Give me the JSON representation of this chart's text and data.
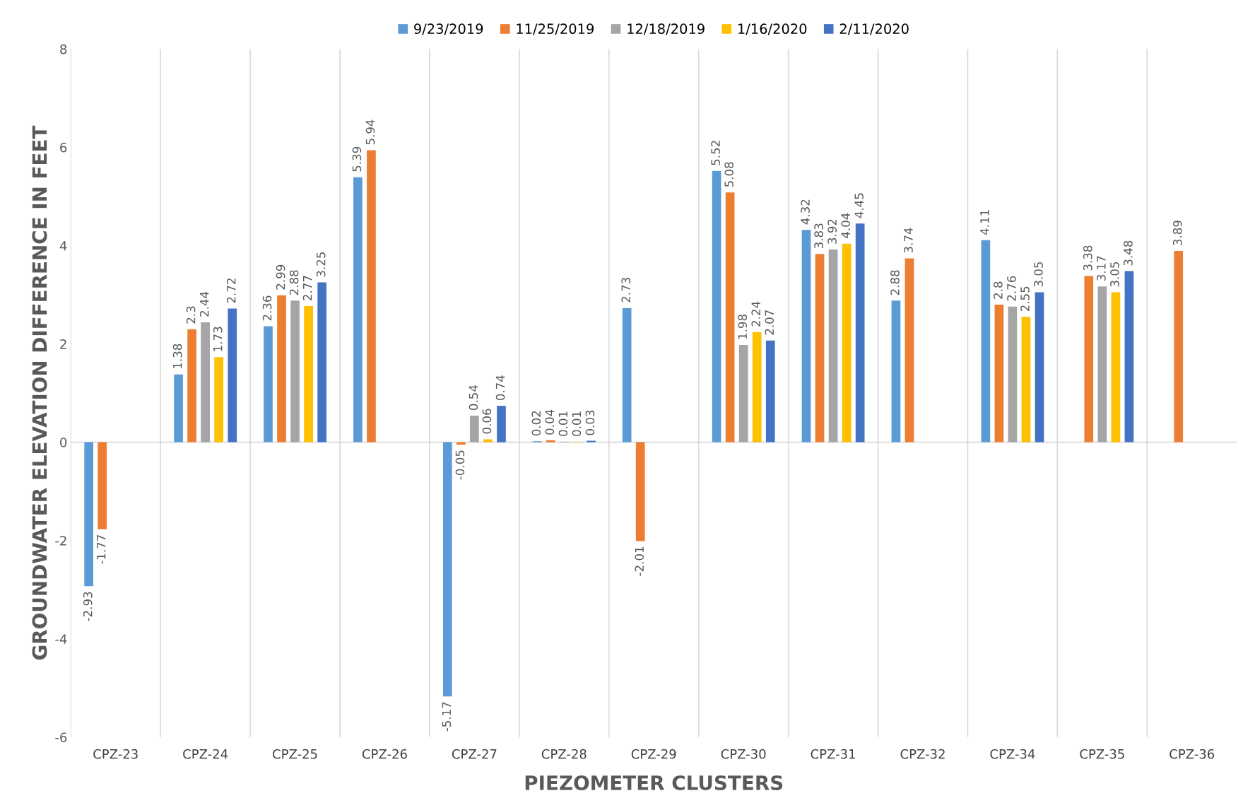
{
  "chart_data": {
    "type": "bar",
    "xlabel": "PIEZOMETER CLUSTERS",
    "ylabel": "GROUNDWATER ELEVATION DIFFERENCE IN FEET",
    "categories": [
      "CPZ-23",
      "CPZ-24",
      "CPZ-25",
      "CPZ-26",
      "CPZ-27",
      "CPZ-28",
      "CPZ-29",
      "CPZ-30",
      "CPZ-31",
      "CPZ-32",
      "CPZ-34",
      "CPZ-35",
      "CPZ-36"
    ],
    "series": [
      {
        "name": "9/23/2019",
        "color": "#5b9bd5",
        "values": [
          -2.93,
          1.38,
          2.36,
          5.39,
          -5.17,
          0.02,
          2.73,
          5.52,
          4.32,
          2.88,
          4.11,
          null,
          null
        ]
      },
      {
        "name": "11/25/2019",
        "color": "#ed7d31",
        "values": [
          -1.77,
          2.3,
          2.99,
          5.94,
          -0.05,
          0.04,
          -2.01,
          5.08,
          3.83,
          3.74,
          2.8,
          3.38,
          3.89
        ]
      },
      {
        "name": "12/18/2019",
        "color": "#a5a5a5",
        "values": [
          null,
          2.44,
          2.88,
          null,
          0.54,
          0.01,
          null,
          1.98,
          3.92,
          null,
          2.76,
          3.17,
          null
        ]
      },
      {
        "name": "1/16/2020",
        "color": "#ffc000",
        "values": [
          null,
          1.73,
          2.77,
          null,
          0.06,
          0.01,
          null,
          2.24,
          4.04,
          null,
          2.55,
          3.05,
          null
        ]
      },
      {
        "name": "2/11/2020",
        "color": "#4472c4",
        "values": [
          null,
          2.72,
          3.25,
          null,
          0.74,
          0.03,
          null,
          2.07,
          4.45,
          null,
          3.05,
          3.48,
          null
        ]
      }
    ],
    "ylim": [
      -6,
      8
    ],
    "yticks": [
      -6,
      -4,
      -2,
      0,
      2,
      4,
      6,
      8
    ],
    "grid": "x",
    "ref_lines": [
      {
        "axis": "y",
        "value": 0,
        "color": "#d9d9d9"
      }
    ],
    "legend": "top",
    "data_labels": true
  }
}
